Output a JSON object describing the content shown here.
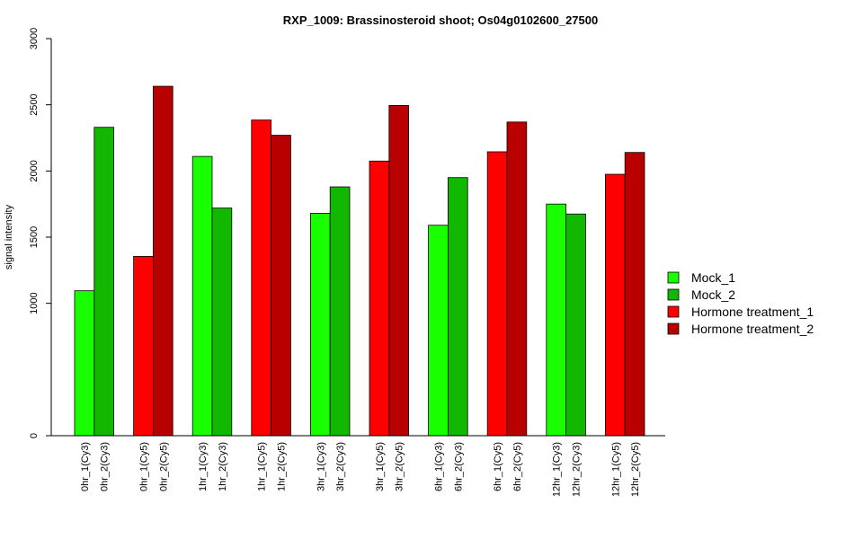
{
  "chart_data": {
    "type": "bar",
    "title": "RXP_1009: Brassinosteroid shoot; Os04g0102600_27500",
    "ylabel": "signal intensity",
    "xlabel": "",
    "ylim": [
      0,
      3000
    ],
    "yticks": [
      0,
      1000,
      1500,
      2000,
      2500,
      3000
    ],
    "grid": false,
    "legend_position": "right",
    "legend": [
      {
        "name": "Mock_1",
        "color": "#19ff00"
      },
      {
        "name": "Mock_2",
        "color": "#12b800"
      },
      {
        "name": "Hormone treatment_1",
        "color": "#ff0000"
      },
      {
        "name": "Hormone treatment_2",
        "color": "#b80000"
      }
    ],
    "bars": [
      {
        "label": "0hr_1(Cy3)",
        "value": 1095,
        "series": 0
      },
      {
        "label": "0hr_2(Cy3)",
        "value": 2330,
        "series": 1
      },
      {
        "label": "0hr_1(Cy5)",
        "value": 1355,
        "series": 2
      },
      {
        "label": "0hr_2(Cy5)",
        "value": 2640,
        "series": 3
      },
      {
        "label": "1hr_1(Cy3)",
        "value": 2110,
        "series": 0
      },
      {
        "label": "1hr_2(Cy3)",
        "value": 1720,
        "series": 1
      },
      {
        "label": "1hr_1(Cy5)",
        "value": 2385,
        "series": 2
      },
      {
        "label": "1hr_2(Cy5)",
        "value": 2270,
        "series": 3
      },
      {
        "label": "3hr_1(Cy3)",
        "value": 1680,
        "series": 0
      },
      {
        "label": "3hr_2(Cy3)",
        "value": 1880,
        "series": 1
      },
      {
        "label": "3hr_1(Cy5)",
        "value": 2075,
        "series": 2
      },
      {
        "label": "3hr_2(Cy5)",
        "value": 2495,
        "series": 3
      },
      {
        "label": "6hr_1(Cy3)",
        "value": 1590,
        "series": 0
      },
      {
        "label": "6hr_2(Cy3)",
        "value": 1950,
        "series": 1
      },
      {
        "label": "6hr_1(Cy5)",
        "value": 2145,
        "series": 2
      },
      {
        "label": "6hr_2(Cy5)",
        "value": 2370,
        "series": 3
      },
      {
        "label": "12hr_1(Cy3)",
        "value": 1750,
        "series": 0
      },
      {
        "label": "12hr_2(Cy3)",
        "value": 1675,
        "series": 1
      },
      {
        "label": "12hr_1(Cy5)",
        "value": 1975,
        "series": 2
      },
      {
        "label": "12hr_2(Cy5)",
        "value": 2140,
        "series": 3
      }
    ]
  }
}
